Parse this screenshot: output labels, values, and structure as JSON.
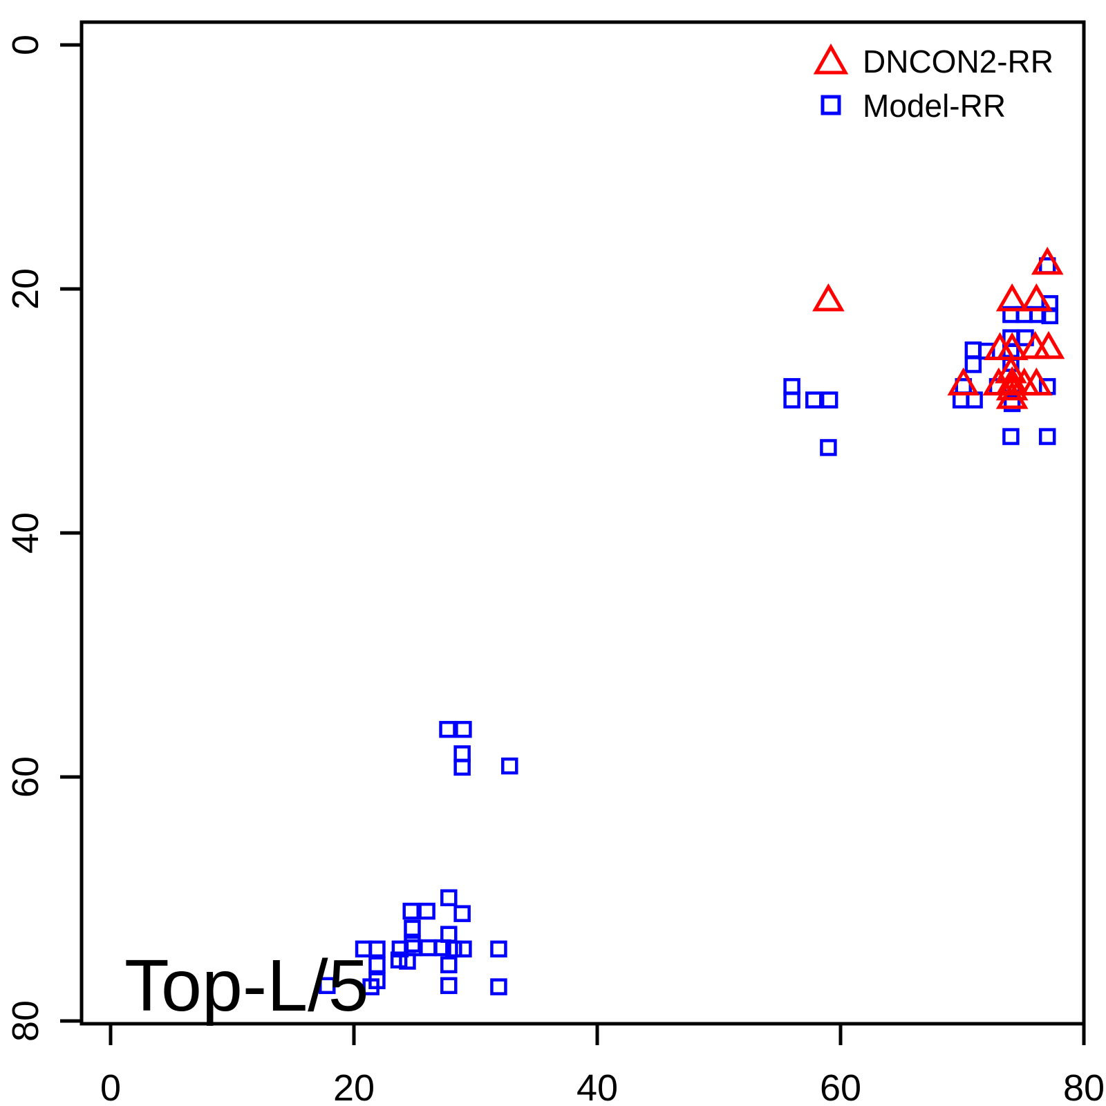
{
  "chart_data": {
    "type": "scatter",
    "title": "",
    "xlabel": "",
    "ylabel": "",
    "annotation": "Top-L/5",
    "xlim": [
      0,
      80
    ],
    "ylim": [
      80,
      0
    ],
    "y_axis_inverted": true,
    "grid": false,
    "x_tick_values": [
      0,
      20,
      40,
      60,
      80
    ],
    "x_tick_labels": [
      "0",
      "20",
      "40",
      "60",
      "80"
    ],
    "y_tick_values": [
      0,
      20,
      40,
      60,
      80
    ],
    "y_tick_labels": [
      "0",
      "20",
      "40",
      "60",
      "80"
    ],
    "legend": {
      "position": "top-right",
      "items": [
        {
          "label": "DNCON2-RR",
          "marker": "triangle",
          "color": "#FF0000"
        },
        {
          "label": "Model-RR",
          "marker": "square",
          "color": "#0000FF"
        }
      ]
    },
    "series": [
      {
        "name": "DNCON2-RR",
        "marker": "triangle",
        "color": "#FF0000",
        "points": [
          [
            77.0,
            17.9
          ],
          [
            74.1,
            20.9
          ],
          [
            76.1,
            20.9
          ],
          [
            59.0,
            20.9
          ],
          [
            73.1,
            24.9
          ],
          [
            74.1,
            24.9
          ],
          [
            76.0,
            24.8
          ],
          [
            77.1,
            24.8
          ],
          [
            74.0,
            26.8
          ],
          [
            70.1,
            27.8
          ],
          [
            73.0,
            27.8
          ],
          [
            74.1,
            27.7
          ],
          [
            75.1,
            27.8
          ],
          [
            76.1,
            27.8
          ],
          [
            74.1,
            28.2
          ],
          [
            74.1,
            28.9
          ]
        ]
      },
      {
        "name": "Model-RR",
        "marker": "square",
        "color": "#0000FF",
        "points": [
          [
            77.0,
            18.1
          ],
          [
            77.2,
            21.2
          ],
          [
            74.0,
            22.1
          ],
          [
            75.1,
            22.1
          ],
          [
            76.2,
            22.1
          ],
          [
            77.2,
            22.2
          ],
          [
            74.0,
            24.0
          ],
          [
            75.2,
            24.0
          ],
          [
            70.9,
            25.0
          ],
          [
            72.0,
            25.1
          ],
          [
            74.0,
            25.2
          ],
          [
            70.9,
            26.2
          ],
          [
            74.0,
            26.1
          ],
          [
            70.1,
            28.0
          ],
          [
            72.9,
            28.0
          ],
          [
            74.1,
            28.1
          ],
          [
            77.0,
            28.0
          ],
          [
            69.9,
            29.1
          ],
          [
            71.0,
            29.1
          ],
          [
            74.1,
            29.4
          ],
          [
            74.0,
            32.1
          ],
          [
            77.0,
            32.1
          ],
          [
            56.0,
            28.0
          ],
          [
            56.0,
            29.1
          ],
          [
            57.8,
            29.1
          ],
          [
            59.1,
            29.1
          ],
          [
            59.0,
            33.0
          ],
          [
            27.7,
            56.1
          ],
          [
            29.0,
            56.1
          ],
          [
            28.9,
            58.1
          ],
          [
            28.9,
            59.2
          ],
          [
            32.8,
            59.1
          ],
          [
            27.8,
            69.9
          ],
          [
            24.7,
            71.0
          ],
          [
            26.0,
            71.0
          ],
          [
            28.9,
            71.2
          ],
          [
            24.8,
            72.4
          ],
          [
            27.8,
            72.9
          ],
          [
            24.8,
            73.7
          ],
          [
            20.8,
            74.1
          ],
          [
            21.9,
            74.1
          ],
          [
            23.8,
            74.1
          ],
          [
            24.9,
            74.0
          ],
          [
            26.1,
            74.0
          ],
          [
            27.3,
            74.0
          ],
          [
            28.2,
            74.1
          ],
          [
            29.0,
            74.1
          ],
          [
            31.9,
            74.1
          ],
          [
            23.7,
            75.0
          ],
          [
            24.4,
            75.1
          ],
          [
            21.9,
            75.4
          ],
          [
            27.8,
            75.4
          ],
          [
            21.9,
            76.7
          ],
          [
            17.8,
            77.1
          ],
          [
            21.4,
            77.2
          ],
          [
            27.8,
            77.1
          ],
          [
            31.9,
            77.2
          ]
        ]
      }
    ]
  }
}
